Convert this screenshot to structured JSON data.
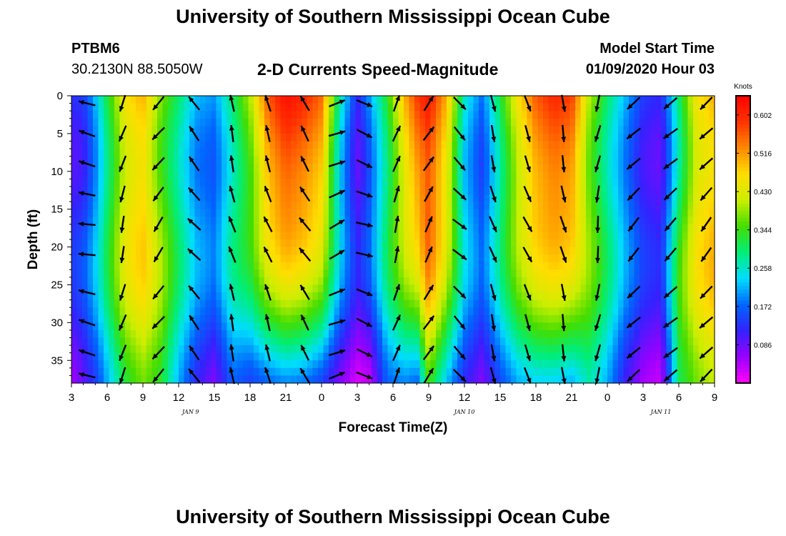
{
  "header": {
    "title": "University of Southern Mississippi Ocean Cube",
    "station_id": "PTBM6",
    "station_coords": "30.2130N 88.5050W",
    "chart_title": "2-D Currents Speed-Magnitude",
    "model_label": "Model Start Time",
    "model_date": "01/09/2020 Hour 03"
  },
  "footer": {
    "title": "University of Southern Mississippi Ocean Cube"
  },
  "colors": {
    "arrow": "#000000",
    "colormap": [
      "#ff00ff",
      "#9900ff",
      "#3322ff",
      "#0066ff",
      "#00ddff",
      "#00ee77",
      "#44dd00",
      "#ccee00",
      "#ffdd00",
      "#ff8800",
      "#ff3300",
      "#ff0000"
    ]
  },
  "chart_data": {
    "type": "heatmap",
    "title": "2-D Currents Speed-Magnitude",
    "xlabel": "Forecast Time(Z)",
    "ylabel": "Depth (ft)",
    "x_range_hours": [
      0,
      54
    ],
    "ylim": [
      0,
      38
    ],
    "y_inverted": true,
    "x_ticks": [
      {
        "h": 0,
        "label": "3"
      },
      {
        "h": 3,
        "label": "6"
      },
      {
        "h": 6,
        "label": "9"
      },
      {
        "h": 9,
        "label": "12"
      },
      {
        "h": 12,
        "label": "15"
      },
      {
        "h": 15,
        "label": "18"
      },
      {
        "h": 18,
        "label": "21"
      },
      {
        "h": 21,
        "label": "0"
      },
      {
        "h": 24,
        "label": "3"
      },
      {
        "h": 27,
        "label": "6"
      },
      {
        "h": 30,
        "label": "9"
      },
      {
        "h": 33,
        "label": "12"
      },
      {
        "h": 36,
        "label": "15"
      },
      {
        "h": 39,
        "label": "18"
      },
      {
        "h": 42,
        "label": "21"
      },
      {
        "h": 45,
        "label": "0"
      },
      {
        "h": 48,
        "label": "3"
      },
      {
        "h": 51,
        "label": "6"
      },
      {
        "h": 54,
        "label": "9"
      }
    ],
    "day_labels": [
      {
        "h": 10,
        "label": "JAN 9"
      },
      {
        "h": 33,
        "label": "JAN 10"
      },
      {
        "h": 49.5,
        "label": "JAN 11"
      }
    ],
    "y_ticks": [
      0,
      5,
      10,
      15,
      20,
      25,
      30,
      35
    ],
    "colorbar": {
      "label": "Knots",
      "min": 0.0,
      "max": 0.645,
      "ticks": [
        "0.602",
        "0.516",
        "0.430",
        "0.344",
        "0.258",
        "0.172",
        "0.086"
      ]
    },
    "time_profiles": [
      {
        "h": 0,
        "top": 0.13,
        "bottom": 0.08,
        "dir": 330
      },
      {
        "h": 1,
        "top": 0.14,
        "bottom": 0.12,
        "dir": 300
      },
      {
        "h": 2,
        "top": 0.22,
        "bottom": 0.17,
        "dir": 240
      },
      {
        "h": 3,
        "top": 0.32,
        "bottom": 0.24,
        "dir": 200
      },
      {
        "h": 4.5,
        "top": 0.46,
        "bottom": 0.35,
        "dir": 195
      },
      {
        "h": 6,
        "top": 0.5,
        "bottom": 0.4,
        "dir": 200
      },
      {
        "h": 7.5,
        "top": 0.38,
        "bottom": 0.36,
        "dir": 220
      },
      {
        "h": 9,
        "top": 0.3,
        "bottom": 0.24,
        "dir": 250
      },
      {
        "h": 10.5,
        "top": 0.22,
        "bottom": 0.15,
        "dir": 330
      },
      {
        "h": 12,
        "top": 0.2,
        "bottom": 0.1,
        "dir": 340
      },
      {
        "h": 13.5,
        "top": 0.3,
        "bottom": 0.2,
        "dir": 345
      },
      {
        "h": 15,
        "top": 0.4,
        "bottom": 0.17,
        "dir": 350
      },
      {
        "h": 16.5,
        "top": 0.56,
        "bottom": 0.2,
        "dir": 340
      },
      {
        "h": 18,
        "top": 0.63,
        "bottom": 0.22,
        "dir": 345
      },
      {
        "h": 19.5,
        "top": 0.6,
        "bottom": 0.21,
        "dir": 350
      },
      {
        "h": 21,
        "top": 0.55,
        "bottom": 0.17,
        "dir": 10
      },
      {
        "h": 22.5,
        "top": 0.28,
        "bottom": 0.1,
        "dir": 75
      },
      {
        "h": 24,
        "top": 0.12,
        "bottom": 0.05,
        "dir": 80
      },
      {
        "h": 25,
        "top": 0.2,
        "bottom": 0.06,
        "dir": 130
      },
      {
        "h": 26.5,
        "top": 0.33,
        "bottom": 0.2,
        "dir": 20
      },
      {
        "h": 28,
        "top": 0.5,
        "bottom": 0.22,
        "dir": 15
      },
      {
        "h": 29,
        "top": 0.58,
        "bottom": 0.2,
        "dir": 20
      },
      {
        "h": 30,
        "top": 0.62,
        "bottom": 0.38,
        "dir": 30
      },
      {
        "h": 31.5,
        "top": 0.5,
        "bottom": 0.25,
        "dir": 60
      },
      {
        "h": 33,
        "top": 0.26,
        "bottom": 0.15,
        "dir": 160
      },
      {
        "h": 34.5,
        "top": 0.18,
        "bottom": 0.1,
        "dir": 160
      },
      {
        "h": 36,
        "top": 0.32,
        "bottom": 0.18,
        "dir": 165
      },
      {
        "h": 37.5,
        "top": 0.46,
        "bottom": 0.24,
        "dir": 160
      },
      {
        "h": 39,
        "top": 0.56,
        "bottom": 0.26,
        "dir": 155
      },
      {
        "h": 40.5,
        "top": 0.6,
        "bottom": 0.26,
        "dir": 165
      },
      {
        "h": 42,
        "top": 0.58,
        "bottom": 0.24,
        "dir": 170
      },
      {
        "h": 43.5,
        "top": 0.4,
        "bottom": 0.3,
        "dir": 180
      },
      {
        "h": 45,
        "top": 0.3,
        "bottom": 0.24,
        "dir": 200
      },
      {
        "h": 46.5,
        "top": 0.22,
        "bottom": 0.14,
        "dir": 220
      },
      {
        "h": 48,
        "top": 0.14,
        "bottom": 0.08,
        "dir": 230
      },
      {
        "h": 49.5,
        "top": 0.12,
        "bottom": 0.06,
        "dir": 230
      },
      {
        "h": 51,
        "top": 0.3,
        "bottom": 0.34,
        "dir": 225
      },
      {
        "h": 52.5,
        "top": 0.46,
        "bottom": 0.4,
        "dir": 225
      },
      {
        "h": 54,
        "top": 0.5,
        "bottom": 0.44,
        "dir": 220
      }
    ],
    "arrow_times_hours": [
      1.3,
      4.3,
      7.3,
      10.3,
      13.5,
      16.5,
      19.6,
      22.3,
      24.6,
      27.3,
      30,
      32.6,
      35.4,
      38.3,
      41.3,
      44.2,
      47.2,
      50.3,
      53.3
    ],
    "arrow_depths_ft": [
      1,
      5,
      9,
      13,
      17,
      21,
      26,
      30,
      34,
      37
    ],
    "arrow_scale_note": "arrow direction in degrees clockwise from up"
  }
}
